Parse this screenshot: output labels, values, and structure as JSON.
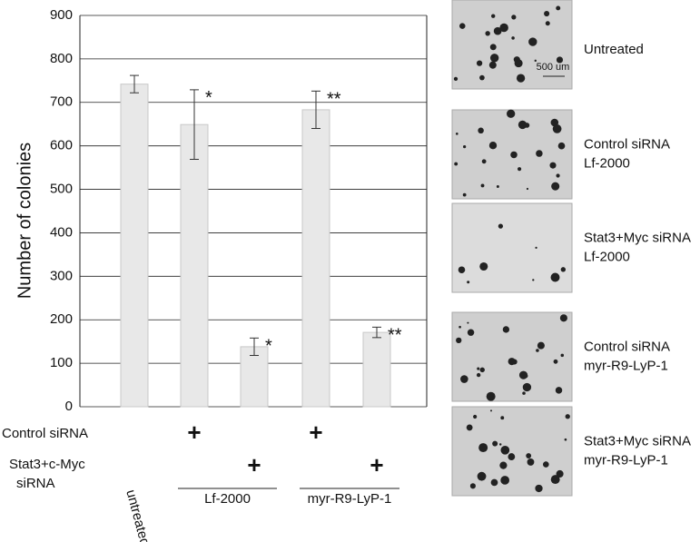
{
  "chart_data": {
    "type": "bar",
    "y_label": "Number of colonies",
    "categories": [
      "untreated",
      null,
      null,
      null,
      null
    ],
    "values": [
      742,
      649,
      138,
      683,
      171
    ],
    "errors": [
      20,
      80,
      20,
      43,
      12
    ],
    "significance": [
      null,
      "*",
      "*",
      "**",
      "**"
    ],
    "color": "#e8e8e8",
    "ylim": [
      0,
      900
    ],
    "yticks": [
      0,
      100,
      200,
      300,
      400,
      500,
      600,
      700,
      800,
      900
    ],
    "grid": true,
    "treatments": [
      {
        "label": [
          "Control siRNA"
        ],
        "marks": [
          null,
          "+",
          null,
          "+",
          null
        ]
      },
      {
        "label": [
          "Stat3+c-Myc",
          "siRNA"
        ],
        "marks": [
          null,
          null,
          "+",
          null,
          "+"
        ]
      }
    ],
    "groups": [
      "Lf-2000",
      "myr-R9-LyP-1"
    ]
  },
  "panels": [
    {
      "label": [
        "Untreated"
      ],
      "scale": "500 um"
    },
    {
      "label": [
        "Control siRNA",
        "Lf-2000"
      ]
    },
    {
      "label": [
        "Stat3+Myc siRNA",
        "Lf-2000"
      ]
    },
    {
      "label": [
        "Control siRNA",
        "myr-R9-LyP-1"
      ]
    },
    {
      "label": [
        "Stat3+Myc siRNA",
        "myr-R9-LyP-1"
      ]
    }
  ]
}
